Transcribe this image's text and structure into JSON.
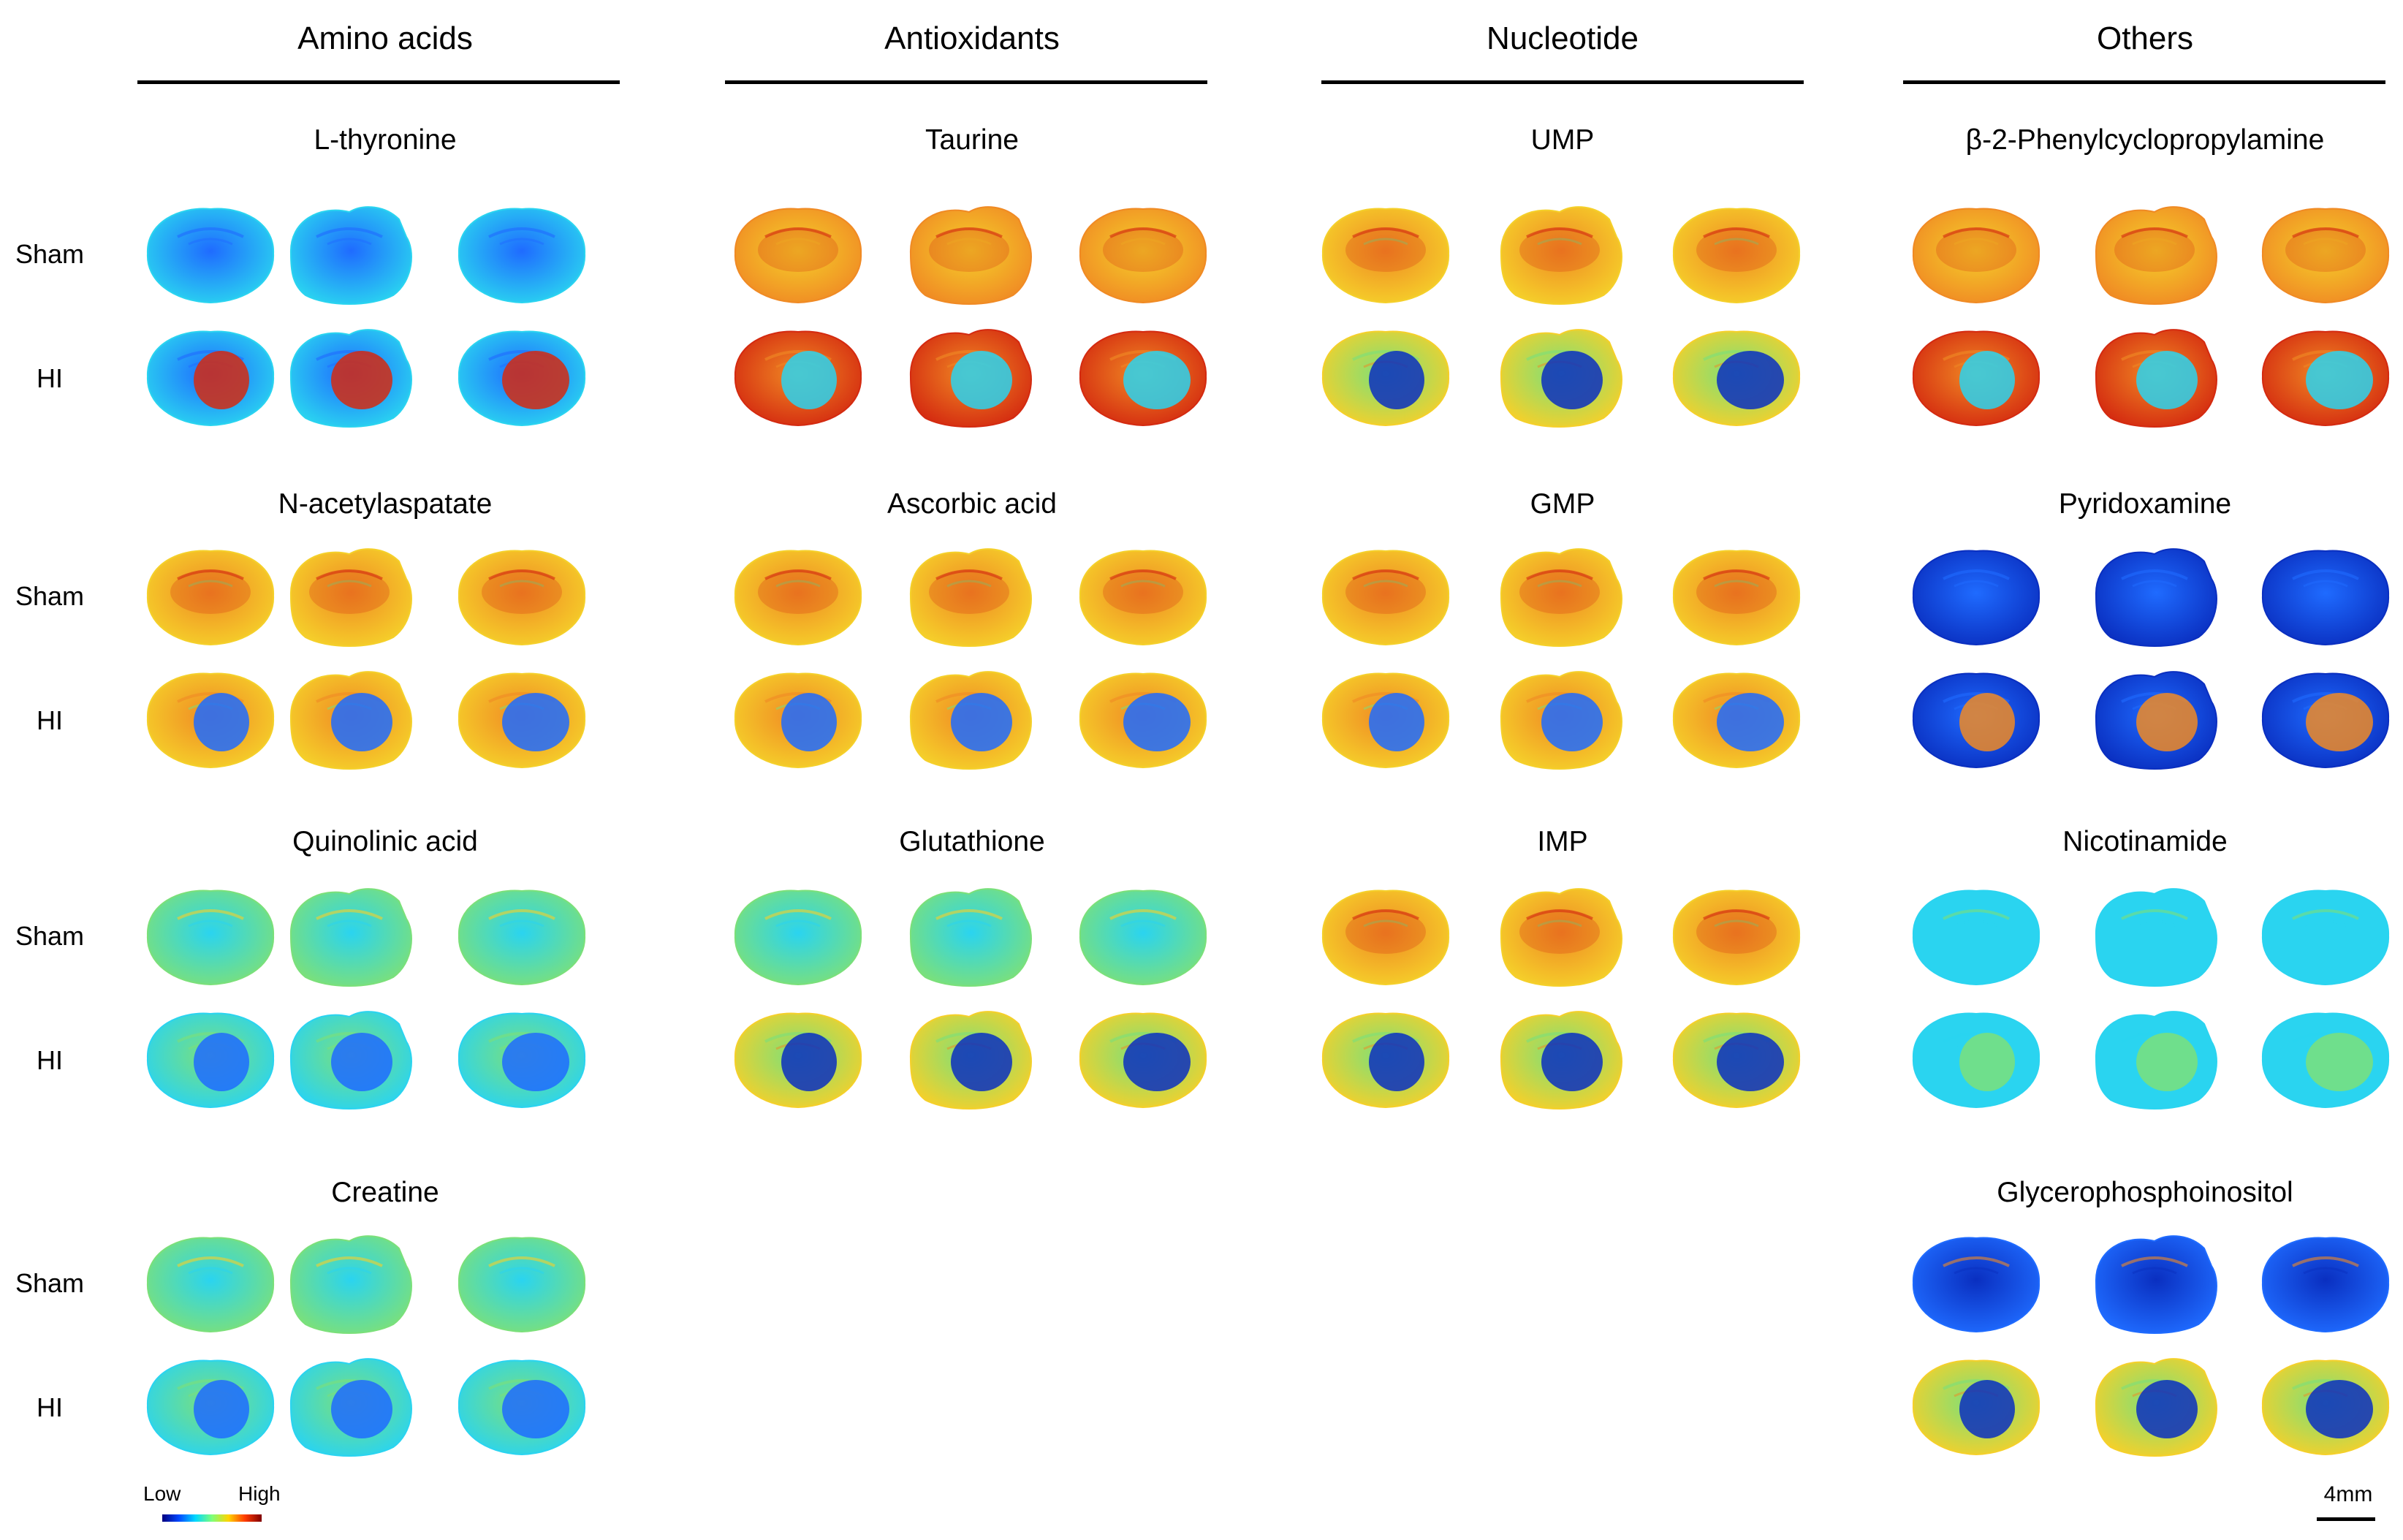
{
  "figure": {
    "categories": [
      "Amino acids",
      "Antioxidants",
      "Nucleotide",
      "Others"
    ],
    "row_labels": {
      "sham": "Sham",
      "hi": "HI"
    },
    "metabolites": [
      {
        "col": 0,
        "row": 0,
        "name": "L-thyronine",
        "sham": "low",
        "hi": "lowspot"
      },
      {
        "col": 0,
        "row": 1,
        "name": "N-acetylaspatate",
        "sham": "mid",
        "hi": "midlesion"
      },
      {
        "col": 0,
        "row": 2,
        "name": "Quinolinic acid",
        "sham": "green",
        "hi": "greenlesion"
      },
      {
        "col": 0,
        "row": 3,
        "name": "Creatine",
        "sham": "green",
        "hi": "greenlesion"
      },
      {
        "col": 1,
        "row": 0,
        "name": "Taurine",
        "sham": "high",
        "hi": "hotlesion"
      },
      {
        "col": 1,
        "row": 1,
        "name": "Ascorbic acid",
        "sham": "mid",
        "hi": "midlesion"
      },
      {
        "col": 1,
        "row": 2,
        "name": "Glutathione",
        "sham": "green",
        "hi": "deeplesion"
      },
      {
        "col": 2,
        "row": 0,
        "name": "UMP",
        "sham": "mid",
        "hi": "deeplesion"
      },
      {
        "col": 2,
        "row": 1,
        "name": "GMP",
        "sham": "mid",
        "hi": "midlesion"
      },
      {
        "col": 2,
        "row": 2,
        "name": "IMP",
        "sham": "mid",
        "hi": "deeplesion"
      },
      {
        "col": 3,
        "row": 0,
        "name": "β-2-Phenylcyclopropylamine",
        "sham": "high",
        "hi": "hotlesion"
      },
      {
        "col": 3,
        "row": 1,
        "name": "Pyridoxamine",
        "sham": "blue",
        "hi": "bluehot"
      },
      {
        "col": 3,
        "row": 2,
        "name": "Nicotinamide",
        "sham": "cyan",
        "hi": "cyan"
      },
      {
        "col": 3,
        "row": 3,
        "name": "Glycerophosphoinositol",
        "sham": "bluemid",
        "hi": "deeplesion"
      }
    ],
    "colorbar": {
      "low_label": "Low",
      "high_label": "High"
    },
    "scale_bar": {
      "label": "4mm"
    },
    "colors": {
      "dark_blue": "#0a2fc0",
      "blue": "#1f6bff",
      "cyan": "#2ad4f0",
      "green": "#7be07a",
      "yellow": "#f5d02a",
      "orange": "#f08a24",
      "red": "#d42a10",
      "dark_red": "#8a0a05"
    }
  }
}
